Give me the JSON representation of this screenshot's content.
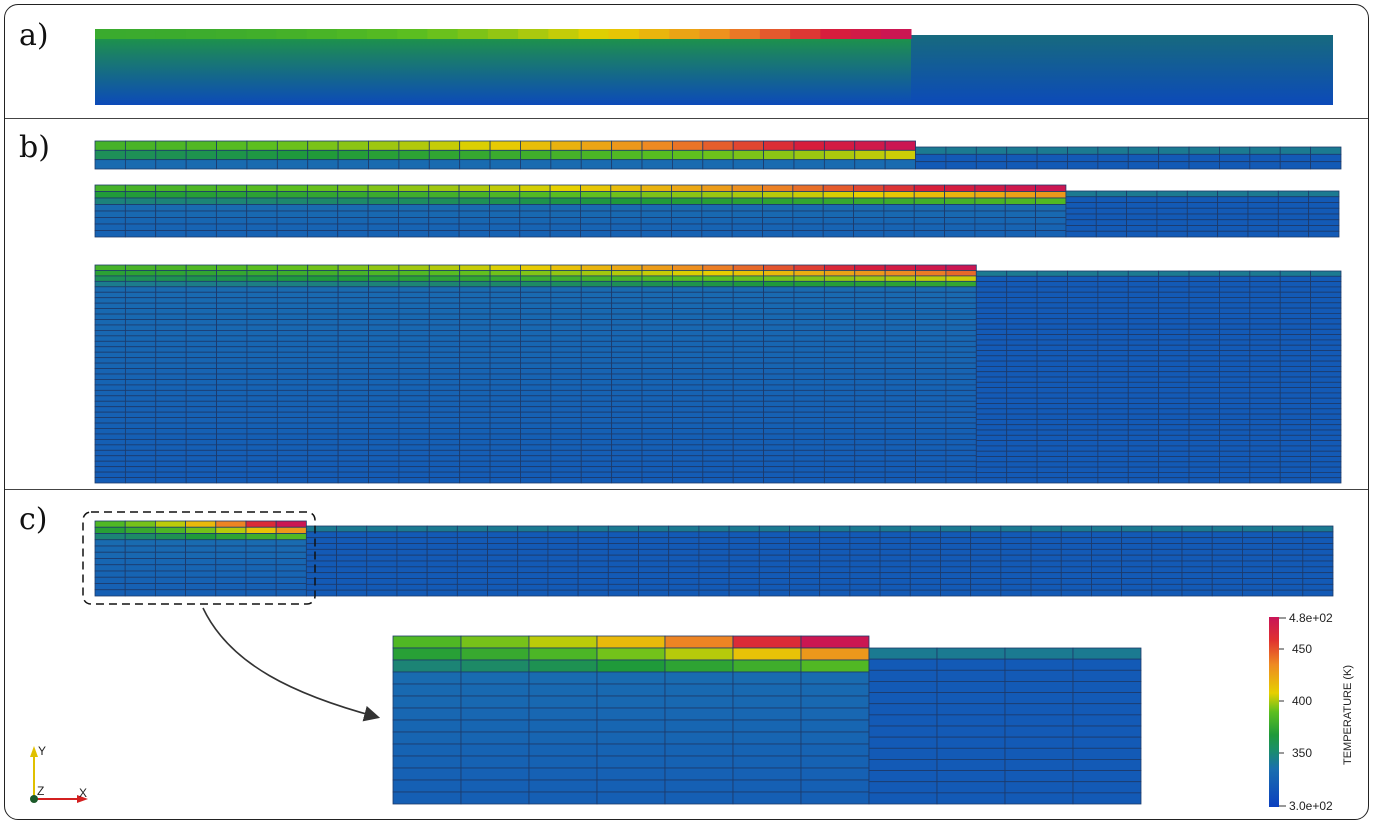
{
  "panels": {
    "a": {
      "label": "a)"
    },
    "b": {
      "label": "b)"
    },
    "c": {
      "label": "c)"
    }
  },
  "colorbar": {
    "title": "TEMPERATURE (K)",
    "max_label": "4.8e+02",
    "min_label": "3.0e+02",
    "ticks": [
      "450",
      "400",
      "350"
    ],
    "range": [
      300,
      480
    ],
    "tick_values": [
      450,
      400,
      350
    ],
    "colors": [
      "#0b3fbf",
      "#1a6faf",
      "#1f9a3a",
      "#5cbf1f",
      "#e6d000",
      "#ee8a22",
      "#d81e3a",
      "#c81458"
    ]
  },
  "axes_triad": {
    "x_label": "X",
    "y_label": "Y",
    "z_label": "Z"
  },
  "colors": {
    "axis_x": "#d32020",
    "axis_y": "#e0c000",
    "axis_z": "#1c5a2a",
    "arrow": "#333333",
    "dashed_box": "#111111"
  }
}
